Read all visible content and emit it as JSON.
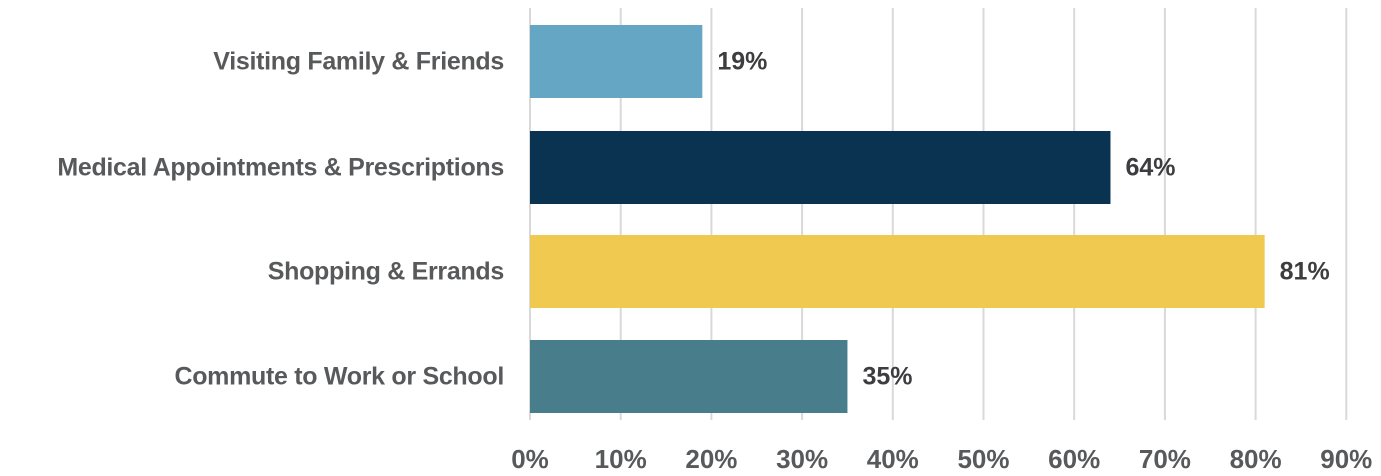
{
  "chart_data": {
    "type": "bar",
    "orientation": "horizontal",
    "categories": [
      "Visiting Family & Friends",
      "Medical Appointments & Prescriptions",
      "Shopping & Errands",
      "Commute to Work or School"
    ],
    "values": [
      19,
      64,
      81,
      35
    ],
    "value_labels": [
      "19%",
      "64%",
      "81%",
      "35%"
    ],
    "bar_colors": [
      "#64a6c3",
      "#0a3352",
      "#f0c951",
      "#487e8c"
    ],
    "xlim": [
      0,
      90
    ],
    "x_ticks": [
      0,
      10,
      20,
      30,
      40,
      50,
      60,
      70,
      80,
      90
    ],
    "x_tick_labels": [
      "0%",
      "10%",
      "20%",
      "30%",
      "40%",
      "50%",
      "60%",
      "70%",
      "80%",
      "90%"
    ],
    "grid": true,
    "legend": "none",
    "title": "",
    "xlabel": "",
    "ylabel": ""
  },
  "colors": {
    "text": "#58595b",
    "value_text": "#3d3d3f",
    "grid": "#d9d9d9"
  }
}
